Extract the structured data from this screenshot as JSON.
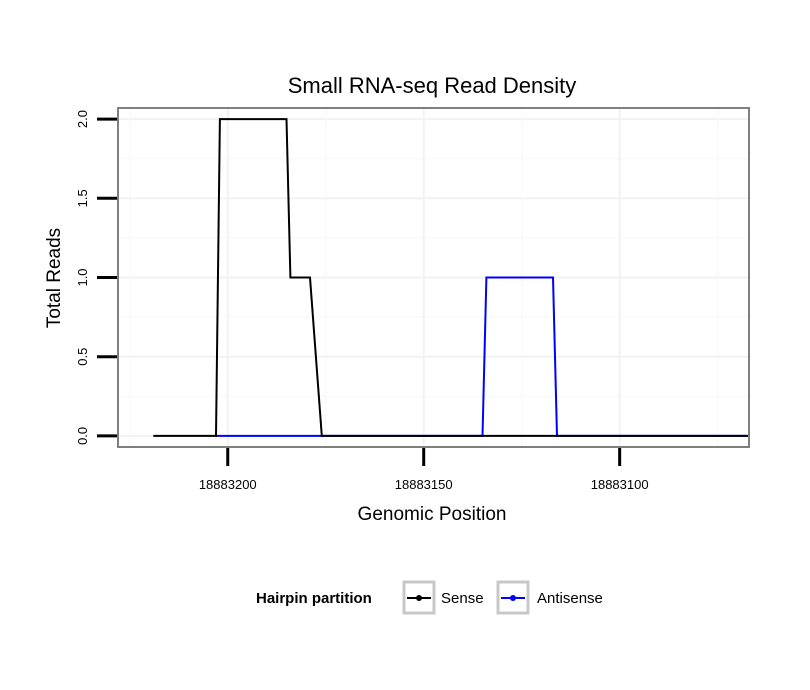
{
  "chart_data": {
    "type": "line",
    "title": "Small RNA-seq Read Density",
    "xlabel": "Genomic Position",
    "ylabel": "Total Reads",
    "x_reversed": true,
    "xlim": [
      18883228,
      18883067
    ],
    "ylim": [
      -0.07,
      2.07
    ],
    "x_ticks": [
      18883200,
      18883150,
      18883100
    ],
    "y_ticks": [
      0.0,
      0.5,
      1.0,
      1.5,
      2.0
    ],
    "x_tick_labels": [
      "18883200",
      "18883150",
      "18883100"
    ],
    "y_tick_labels": [
      "0.0",
      "0.5",
      "1.0",
      "1.5",
      "2.0"
    ],
    "grid": true,
    "legend": {
      "title": "Hairpin partition",
      "position": "bottom",
      "entries": [
        "Sense",
        "Antisense"
      ]
    },
    "series": [
      {
        "name": "Sense",
        "color": "#000000",
        "x": [
          18883219,
          18883203,
          18883202,
          18883185,
          18883184,
          18883179,
          18883176,
          18883067
        ],
        "y": [
          0,
          0,
          2,
          2,
          1,
          1,
          0,
          0
        ]
      },
      {
        "name": "Antisense",
        "color": "#0000ff",
        "x": [
          18883203,
          18883176,
          18883135,
          18883134,
          18883117,
          18883116,
          18883067
        ],
        "y": [
          0,
          0,
          0,
          1,
          1,
          0,
          0
        ]
      }
    ]
  }
}
